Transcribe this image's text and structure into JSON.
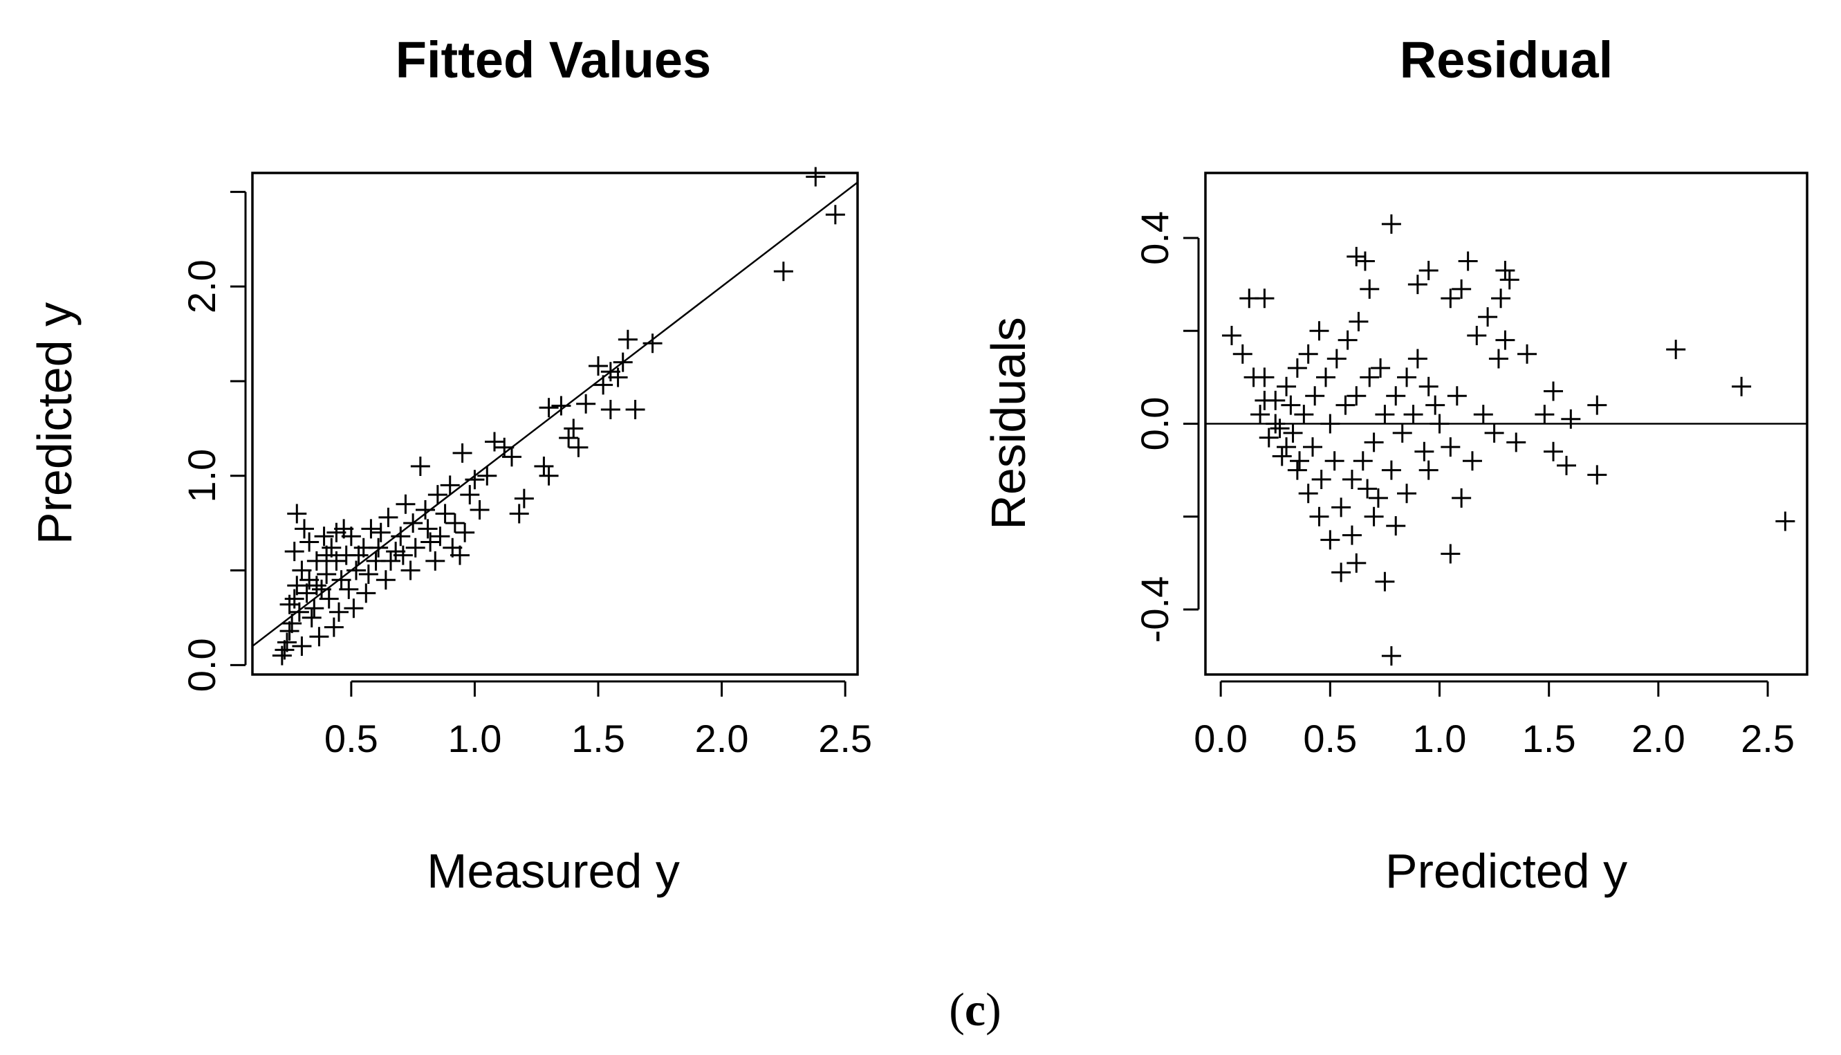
{
  "figure": {
    "caption_open": "(",
    "caption_letter": "c",
    "caption_close": ")"
  },
  "chart_data": [
    {
      "type": "scatter",
      "title": "Fitted Values",
      "xlabel": "Measured y",
      "ylabel": "Predicted y",
      "xlim": [
        0.1,
        2.55
      ],
      "ylim": [
        -0.05,
        2.6
      ],
      "xticks": [
        0.5,
        1.0,
        1.5,
        2.0,
        2.5
      ],
      "xtick_labels": [
        "0.5",
        "1.0",
        "1.5",
        "2.0",
        "2.5"
      ],
      "yticks": [
        0.0,
        0.5,
        1.0,
        1.5,
        2.0,
        2.5
      ],
      "ytick_labels": [
        "0.0",
        "",
        "1.0",
        "",
        "2.0",
        ""
      ],
      "marker": "plus",
      "reference_line": {
        "type": "identity",
        "intercept": 0.0,
        "slope": 1.0
      },
      "points": [
        [
          2.38,
          2.58
        ],
        [
          2.46,
          2.38
        ],
        [
          2.25,
          2.08
        ],
        [
          1.72,
          1.7
        ],
        [
          1.62,
          1.72
        ],
        [
          1.6,
          1.6
        ],
        [
          1.5,
          1.58
        ],
        [
          1.55,
          1.55
        ],
        [
          1.52,
          1.48
        ],
        [
          1.58,
          1.52
        ],
        [
          1.65,
          1.35
        ],
        [
          1.55,
          1.35
        ],
        [
          1.45,
          1.38
        ],
        [
          1.4,
          1.25
        ],
        [
          1.42,
          1.15
        ],
        [
          1.3,
          1.36
        ],
        [
          1.35,
          1.37
        ],
        [
          1.38,
          1.2
        ],
        [
          1.28,
          1.05
        ],
        [
          1.3,
          1.0
        ],
        [
          1.2,
          0.88
        ],
        [
          1.15,
          1.1
        ],
        [
          1.12,
          1.15
        ],
        [
          1.08,
          1.18
        ],
        [
          1.18,
          0.8
        ],
        [
          1.05,
          1.0
        ],
        [
          1.0,
          0.98
        ],
        [
          0.95,
          1.12
        ],
        [
          0.98,
          0.9
        ],
        [
          0.9,
          0.95
        ],
        [
          0.85,
          0.9
        ],
        [
          0.92,
          0.75
        ],
        [
          1.02,
          0.82
        ],
        [
          0.96,
          0.7
        ],
        [
          0.88,
          0.8
        ],
        [
          0.8,
          0.82
        ],
        [
          0.78,
          1.05
        ],
        [
          0.82,
          0.65
        ],
        [
          0.75,
          0.75
        ],
        [
          0.72,
          0.85
        ],
        [
          0.7,
          0.68
        ],
        [
          0.68,
          0.6
        ],
        [
          0.65,
          0.78
        ],
        [
          0.62,
          0.7
        ],
        [
          0.6,
          0.55
        ],
        [
          0.58,
          0.72
        ],
        [
          0.55,
          0.62
        ],
        [
          0.52,
          0.5
        ],
        [
          0.5,
          0.68
        ],
        [
          0.48,
          0.58
        ],
        [
          0.46,
          0.45
        ],
        [
          0.44,
          0.55
        ],
        [
          0.42,
          0.62
        ],
        [
          0.4,
          0.48
        ],
        [
          0.38,
          0.4
        ],
        [
          0.36,
          0.55
        ],
        [
          0.35,
          0.3
        ],
        [
          0.33,
          0.45
        ],
        [
          0.32,
          0.38
        ],
        [
          0.3,
          0.5
        ],
        [
          0.29,
          0.28
        ],
        [
          0.28,
          0.42
        ],
        [
          0.27,
          0.35
        ],
        [
          0.26,
          0.22
        ],
        [
          0.25,
          0.18
        ],
        [
          0.24,
          0.12
        ],
        [
          0.23,
          0.08
        ],
        [
          0.22,
          0.05
        ],
        [
          0.25,
          0.32
        ],
        [
          0.28,
          0.8
        ],
        [
          0.31,
          0.72
        ],
        [
          0.34,
          0.25
        ],
        [
          0.37,
          0.15
        ],
        [
          0.41,
          0.35
        ],
        [
          0.45,
          0.28
        ],
        [
          0.49,
          0.4
        ],
        [
          0.53,
          0.58
        ],
        [
          0.57,
          0.48
        ],
        [
          0.61,
          0.62
        ],
        [
          0.66,
          0.55
        ],
        [
          0.71,
          0.58
        ],
        [
          0.76,
          0.62
        ],
        [
          0.81,
          0.72
        ],
        [
          0.86,
          0.68
        ],
        [
          0.91,
          0.62
        ],
        [
          0.43,
          0.2
        ],
        [
          0.39,
          0.68
        ],
        [
          0.47,
          0.72
        ],
        [
          0.51,
          0.3
        ],
        [
          0.56,
          0.38
        ],
        [
          0.64,
          0.45
        ],
        [
          0.74,
          0.5
        ],
        [
          0.84,
          0.55
        ],
        [
          0.94,
          0.58
        ],
        [
          0.3,
          0.1
        ],
        [
          0.27,
          0.6
        ],
        [
          0.33,
          0.65
        ],
        [
          0.36,
          0.42
        ],
        [
          0.4,
          0.58
        ],
        [
          0.44,
          0.7
        ]
      ]
    },
    {
      "type": "scatter",
      "title": "Residual",
      "xlabel": "Predicted y",
      "ylabel": "Residuals",
      "xlim": [
        -0.07,
        2.68
      ],
      "ylim": [
        -0.54,
        0.54
      ],
      "xticks": [
        0.0,
        0.5,
        1.0,
        1.5,
        2.0,
        2.5
      ],
      "xtick_labels": [
        "0.0",
        "0.5",
        "1.0",
        "1.5",
        "2.0",
        "2.5"
      ],
      "yticks": [
        -0.4,
        -0.2,
        0.0,
        0.2,
        0.4
      ],
      "ytick_labels": [
        "-0.4",
        "",
        "0.0",
        "",
        "0.4"
      ],
      "marker": "plus",
      "reference_line": {
        "type": "horizontal",
        "y": 0.0
      },
      "points": [
        [
          0.78,
          0.43
        ],
        [
          0.62,
          0.36
        ],
        [
          0.66,
          0.35
        ],
        [
          1.13,
          0.35
        ],
        [
          0.95,
          0.33
        ],
        [
          1.3,
          0.33
        ],
        [
          0.9,
          0.3
        ],
        [
          1.32,
          0.31
        ],
        [
          1.1,
          0.29
        ],
        [
          1.05,
          0.27
        ],
        [
          1.28,
          0.27
        ],
        [
          0.2,
          0.27
        ],
        [
          0.13,
          0.27
        ],
        [
          0.68,
          0.29
        ],
        [
          1.22,
          0.23
        ],
        [
          1.17,
          0.19
        ],
        [
          1.3,
          0.18
        ],
        [
          2.08,
          0.16
        ],
        [
          1.4,
          0.15
        ],
        [
          1.27,
          0.14
        ],
        [
          2.38,
          0.08
        ],
        [
          1.52,
          0.07
        ],
        [
          1.72,
          0.04
        ],
        [
          1.6,
          0.01
        ],
        [
          1.48,
          0.02
        ],
        [
          1.35,
          -0.04
        ],
        [
          1.52,
          -0.06
        ],
        [
          1.58,
          -0.09
        ],
        [
          1.72,
          -0.11
        ],
        [
          1.1,
          -0.16
        ],
        [
          1.05,
          -0.28
        ],
        [
          2.58,
          -0.21
        ],
        [
          0.75,
          -0.34
        ],
        [
          0.78,
          -0.5
        ],
        [
          0.62,
          -0.3
        ],
        [
          0.55,
          -0.32
        ],
        [
          0.05,
          0.19
        ],
        [
          0.1,
          0.15
        ],
        [
          0.15,
          0.1
        ],
        [
          0.2,
          0.05
        ],
        [
          0.25,
          0.0
        ],
        [
          0.3,
          -0.05
        ],
        [
          0.35,
          -0.1
        ],
        [
          0.4,
          -0.15
        ],
        [
          0.45,
          -0.2
        ],
        [
          0.5,
          -0.25
        ],
        [
          0.55,
          -0.18
        ],
        [
          0.6,
          -0.12
        ],
        [
          0.65,
          -0.08
        ],
        [
          0.7,
          -0.04
        ],
        [
          0.75,
          0.02
        ],
        [
          0.8,
          0.06
        ],
        [
          0.85,
          0.1
        ],
        [
          0.9,
          0.14
        ],
        [
          0.95,
          0.08
        ],
        [
          1.0,
          0.0
        ],
        [
          1.05,
          -0.05
        ],
        [
          0.95,
          -0.1
        ],
        [
          0.85,
          -0.15
        ],
        [
          0.7,
          -0.2
        ],
        [
          0.6,
          -0.24
        ],
        [
          0.45,
          0.2
        ],
        [
          0.4,
          0.15
        ],
        [
          0.35,
          0.12
        ],
        [
          0.3,
          0.08
        ],
        [
          0.25,
          0.05
        ],
        [
          0.2,
          0.1
        ],
        [
          0.18,
          0.02
        ],
        [
          0.22,
          -0.03
        ],
        [
          0.28,
          -0.07
        ],
        [
          0.33,
          -0.02
        ],
        [
          0.38,
          0.02
        ],
        [
          0.43,
          0.06
        ],
        [
          0.48,
          0.1
        ],
        [
          0.53,
          0.14
        ],
        [
          0.58,
          0.18
        ],
        [
          0.63,
          0.22
        ],
        [
          0.68,
          0.1
        ],
        [
          0.73,
          0.12
        ],
        [
          0.78,
          -0.1
        ],
        [
          0.83,
          -0.02
        ],
        [
          0.88,
          0.02
        ],
        [
          0.93,
          -0.06
        ],
        [
          0.98,
          0.04
        ],
        [
          1.08,
          0.06
        ],
        [
          1.15,
          -0.08
        ],
        [
          1.2,
          0.02
        ],
        [
          1.25,
          -0.02
        ],
        [
          0.5,
          0.0
        ],
        [
          0.42,
          -0.05
        ],
        [
          0.36,
          -0.08
        ],
        [
          0.32,
          0.04
        ],
        [
          0.27,
          -0.01
        ],
        [
          0.46,
          -0.12
        ],
        [
          0.52,
          -0.08
        ],
        [
          0.57,
          0.04
        ],
        [
          0.62,
          0.06
        ],
        [
          0.67,
          -0.14
        ],
        [
          0.72,
          -0.16
        ],
        [
          0.8,
          -0.22
        ]
      ]
    }
  ]
}
